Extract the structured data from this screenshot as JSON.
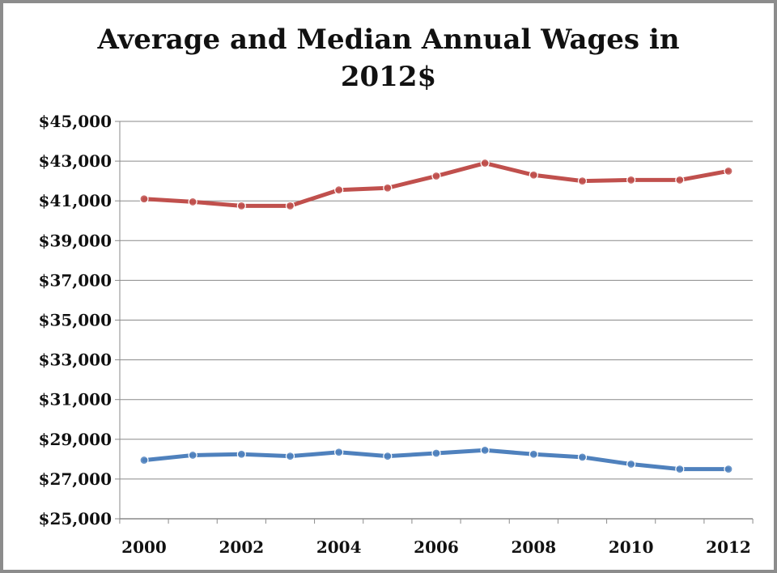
{
  "chart_data": {
    "type": "line",
    "title_lines": [
      "Average and Median Annual Wages in",
      "2012$"
    ],
    "x": [
      2000,
      2001,
      2002,
      2003,
      2004,
      2005,
      2006,
      2007,
      2008,
      2009,
      2010,
      2011,
      2012
    ],
    "x_tick_labels": [
      "2000",
      "2002",
      "2004",
      "2006",
      "2008",
      "2010",
      "2012"
    ],
    "x_tick_values": [
      2000,
      2002,
      2004,
      2006,
      2008,
      2010,
      2012
    ],
    "y_tick_labels": [
      "$45,000",
      "$43,000",
      "$41,000",
      "$39,000",
      "$37,000",
      "$35,000",
      "$33,000",
      "$31,000",
      "$29,000",
      "$27,000",
      "$25,000"
    ],
    "y_tick_values": [
      45000,
      43000,
      41000,
      39000,
      37000,
      35000,
      33000,
      31000,
      29000,
      27000,
      25000
    ],
    "ylim": [
      25000,
      45000
    ],
    "xlim": [
      2000,
      2012
    ],
    "grid": true,
    "series": [
      {
        "color": "#c0504d",
        "values": [
          41100,
          40950,
          40750,
          40750,
          41550,
          41650,
          42250,
          42900,
          42300,
          42000,
          42050,
          42050,
          42500
        ]
      },
      {
        "color": "#4f81bd",
        "values": [
          27950,
          28200,
          28250,
          28150,
          28350,
          28150,
          28300,
          28450,
          28250,
          28100,
          27750,
          27500,
          27500
        ]
      }
    ]
  }
}
